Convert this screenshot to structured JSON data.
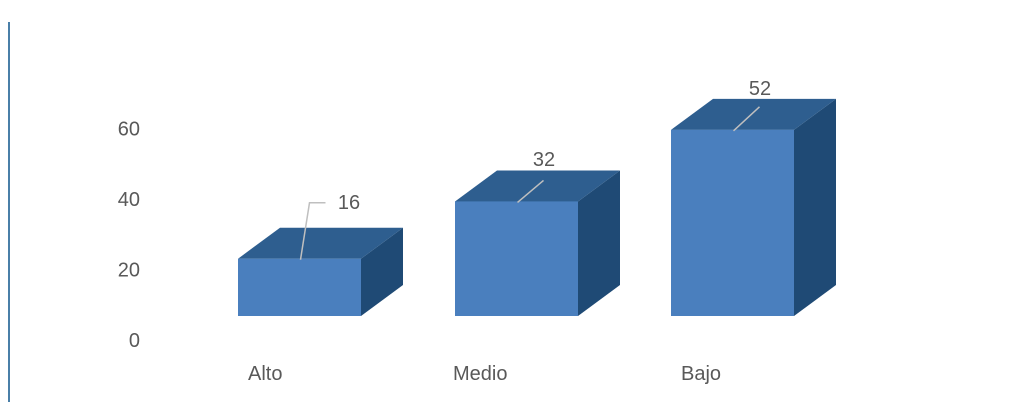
{
  "chart_data": {
    "type": "bar",
    "style": "3d-column",
    "categories": [
      "Alto",
      "Medio",
      "Bajo"
    ],
    "values": [
      16,
      32,
      52
    ],
    "data_labels": [
      "16",
      "32",
      "52"
    ],
    "y_ticks": [
      "0",
      "20",
      "40",
      "60"
    ],
    "ylim": [
      0,
      60
    ],
    "grid": false,
    "legend": "none",
    "colors": {
      "front": "#4a7fbe",
      "top": "#2e5e8f",
      "side": "#1f4a75",
      "frame_line": "#4a7fa8",
      "leader_line": "#bfbfbf",
      "text": "#595959"
    }
  }
}
